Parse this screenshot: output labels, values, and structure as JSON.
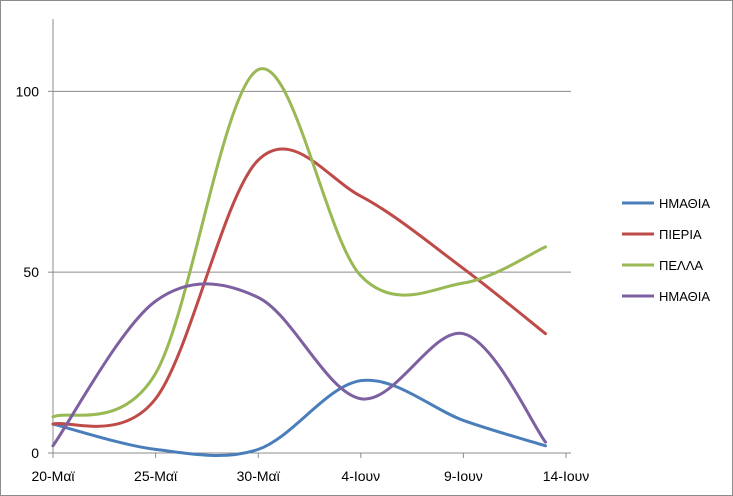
{
  "chart_data": {
    "type": "line",
    "title": "",
    "xlabel": "",
    "ylabel": "",
    "x_ticks": [
      "20-Μαϊ",
      "25-Μαϊ",
      "30-Μαϊ",
      "4-Ιουν",
      "9-Ιουν",
      "14-Ιουν"
    ],
    "y_ticks": [
      "0",
      "50",
      "100"
    ],
    "ylim": [
      0,
      120
    ],
    "xlim": [
      "20-Μαϊ",
      "14-Ιουν"
    ],
    "grid": "horizontal",
    "legend_position": "right",
    "series": [
      {
        "name": "ΗΜΑΘΙΑ",
        "color": "#4a7ebb",
        "x": [
          "20-Μαϊ",
          "25-Μαϊ",
          "30-Μαϊ",
          "4-Ιουν",
          "9-Ιουν",
          "13-Ιουν"
        ],
        "values": [
          8,
          1,
          1,
          20,
          9,
          2
        ]
      },
      {
        "name": "ΠΙΕΡΙΑ",
        "color": "#be4b48",
        "x": [
          "20-Μαϊ",
          "25-Μαϊ",
          "30-Μαϊ",
          "4-Ιουν",
          "9-Ιουν",
          "13-Ιουν"
        ],
        "values": [
          8,
          15,
          81,
          71,
          51,
          33
        ]
      },
      {
        "name": "ΠΕΛΛΑ",
        "color": "#98b954",
        "x": [
          "20-Μαϊ",
          "25-Μαϊ",
          "30-Μαϊ",
          "4-Ιουν",
          "9-Ιουν",
          "13-Ιουν"
        ],
        "values": [
          10,
          22,
          106,
          49,
          47,
          57
        ]
      },
      {
        "name": "ΗΜΑΘΙΑ",
        "color": "#7d60a0",
        "x": [
          "20-Μαϊ",
          "25-Μαϊ",
          "30-Μαϊ",
          "4-Ιουν",
          "9-Ιουν",
          "13-Ιουν"
        ],
        "values": [
          2,
          42,
          43,
          15,
          33,
          3
        ]
      }
    ]
  }
}
